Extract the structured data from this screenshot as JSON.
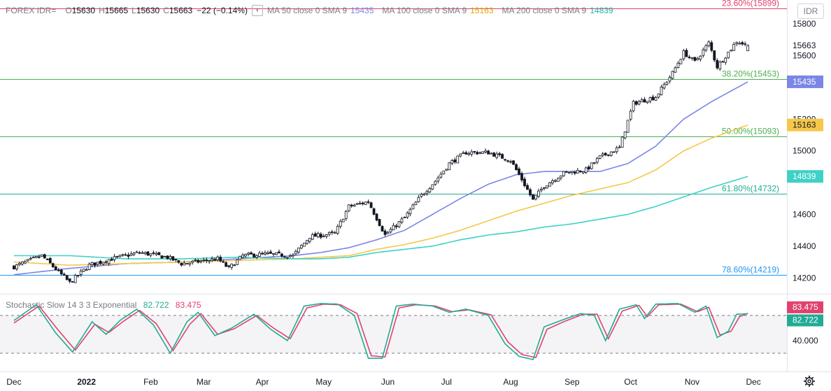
{
  "header": {
    "symbol": "FOREX IDR=",
    "o_label": "O",
    "o": "15630",
    "h_label": "H",
    "h": "15665",
    "l_label": "L",
    "l": "15630",
    "c_label": "C",
    "c": "15663",
    "change": "−22 (−0.14%)",
    "collapse_glyph": "‹",
    "ma50_label": "MA 50 close 0 SMA 9",
    "ma50_value": "15435",
    "ma100_label": "MA 100 close 0 SMA 9",
    "ma100_value": "15163",
    "ma200_label": "MA 200 close 0 SMA 9",
    "ma200_value": "14839"
  },
  "currency_button": "IDR",
  "stochastic": {
    "label": "Stochastic Slow 14 3 3 Exponential",
    "k": "82.722",
    "d": "83.475"
  },
  "colors": {
    "ma50": "#7b86e6",
    "ma100": "#f5c74a",
    "ma200": "#3fd1c6",
    "stoch_k": "#22ab94",
    "stoch_d": "#e0426e",
    "fib_23": "#e0426e",
    "fib_38": "#4caf50",
    "fib_50": "#4caf50",
    "fib_61": "#22ab94",
    "fib_78": "#2196f3"
  },
  "icons": {
    "settings": "gear-icon"
  },
  "chart_data": {
    "type": "candlestick",
    "ylim": [
      14100,
      15950
    ],
    "price_ticks": [
      "15800",
      "15600",
      "15200",
      "15000",
      "14600",
      "14400",
      "14200"
    ],
    "months": [
      "Dec",
      "2022",
      "Feb",
      "Mar",
      "Apr",
      "May",
      "Jun",
      "Jul",
      "Aug",
      "Sep",
      "Oct",
      "Nov",
      "Dec"
    ],
    "month_positions": [
      0,
      26,
      49,
      68,
      89,
      111,
      134,
      155,
      178,
      200,
      221,
      243,
      265
    ],
    "x_range": [
      -5,
      277
    ],
    "last_price": "15663",
    "fib_levels": [
      {
        "label": "23.60%(15899)",
        "value": 15899,
        "color": "#e0426e"
      },
      {
        "label": "38.20%(15453)",
        "value": 15453,
        "color": "#4caf50"
      },
      {
        "label": "50.00%(15093)",
        "value": 15093,
        "color": "#4caf50"
      },
      {
        "label": "61.80%(14732)",
        "value": 14732,
        "color": "#22ab94"
      },
      {
        "label": "78.60%(14219)",
        "value": 14219,
        "color": "#2196f3"
      }
    ],
    "close_anchors": [
      [
        0,
        14270
      ],
      [
        10,
        14340
      ],
      [
        20,
        14170
      ],
      [
        27,
        14280
      ],
      [
        35,
        14320
      ],
      [
        45,
        14360
      ],
      [
        55,
        14330
      ],
      [
        60,
        14290
      ],
      [
        65,
        14300
      ],
      [
        73,
        14320
      ],
      [
        77,
        14260
      ],
      [
        82,
        14340
      ],
      [
        90,
        14350
      ],
      [
        100,
        14340
      ],
      [
        106,
        14460
      ],
      [
        115,
        14480
      ],
      [
        120,
        14650
      ],
      [
        127,
        14680
      ],
      [
        133,
        14470
      ],
      [
        140,
        14580
      ],
      [
        146,
        14720
      ],
      [
        151,
        14810
      ],
      [
        156,
        14920
      ],
      [
        162,
        14990
      ],
      [
        170,
        14990
      ],
      [
        178,
        14940
      ],
      [
        182,
        14820
      ],
      [
        186,
        14690
      ],
      [
        190,
        14780
      ],
      [
        197,
        14860
      ],
      [
        205,
        14880
      ],
      [
        210,
        14960
      ],
      [
        217,
        15020
      ],
      [
        222,
        15300
      ],
      [
        230,
        15340
      ],
      [
        236,
        15490
      ],
      [
        240,
        15620
      ],
      [
        244,
        15560
      ],
      [
        249,
        15680
      ],
      [
        252,
        15530
      ],
      [
        256,
        15620
      ],
      [
        259,
        15690
      ],
      [
        263,
        15663
      ]
    ],
    "ma_series": [
      {
        "name": "MA 50 close 0 SMA 9",
        "value": 15435,
        "color": "#7b86e6",
        "anchors": [
          [
            0,
            14220
          ],
          [
            20,
            14260
          ],
          [
            40,
            14290
          ],
          [
            60,
            14300
          ],
          [
            80,
            14320
          ],
          [
            100,
            14340
          ],
          [
            110,
            14360
          ],
          [
            120,
            14390
          ],
          [
            130,
            14440
          ],
          [
            140,
            14500
          ],
          [
            150,
            14600
          ],
          [
            160,
            14700
          ],
          [
            170,
            14790
          ],
          [
            180,
            14850
          ],
          [
            190,
            14870
          ],
          [
            200,
            14870
          ],
          [
            210,
            14870
          ],
          [
            220,
            14920
          ],
          [
            230,
            15030
          ],
          [
            240,
            15200
          ],
          [
            250,
            15310
          ],
          [
            263,
            15435
          ]
        ]
      },
      {
        "name": "MA 100 close 0 SMA 9",
        "value": 15163,
        "color": "#f5c74a",
        "anchors": [
          [
            0,
            14300
          ],
          [
            20,
            14280
          ],
          [
            40,
            14290
          ],
          [
            60,
            14300
          ],
          [
            80,
            14310
          ],
          [
            100,
            14320
          ],
          [
            110,
            14330
          ],
          [
            120,
            14340
          ],
          [
            130,
            14380
          ],
          [
            140,
            14410
          ],
          [
            150,
            14450
          ],
          [
            160,
            14500
          ],
          [
            170,
            14560
          ],
          [
            180,
            14620
          ],
          [
            190,
            14670
          ],
          [
            200,
            14720
          ],
          [
            210,
            14760
          ],
          [
            220,
            14800
          ],
          [
            230,
            14880
          ],
          [
            240,
            15000
          ],
          [
            250,
            15080
          ],
          [
            263,
            15163
          ]
        ]
      },
      {
        "name": "MA 200 close 0 SMA 9",
        "value": 14839,
        "color": "#3fd1c6",
        "anchors": [
          [
            0,
            14340
          ],
          [
            20,
            14340
          ],
          [
            40,
            14320
          ],
          [
            60,
            14320
          ],
          [
            80,
            14330
          ],
          [
            100,
            14320
          ],
          [
            110,
            14320
          ],
          [
            120,
            14330
          ],
          [
            130,
            14360
          ],
          [
            140,
            14380
          ],
          [
            150,
            14400
          ],
          [
            160,
            14440
          ],
          [
            170,
            14470
          ],
          [
            180,
            14490
          ],
          [
            190,
            14520
          ],
          [
            200,
            14540
          ],
          [
            210,
            14570
          ],
          [
            220,
            14600
          ],
          [
            230,
            14650
          ],
          [
            240,
            14710
          ],
          [
            250,
            14770
          ],
          [
            263,
            14839
          ]
        ]
      }
    ],
    "stoch": {
      "ylim": [
        0,
        100
      ],
      "ticks": [
        "40.000"
      ],
      "bands": [
        80,
        20
      ],
      "k_last": 82.722,
      "d_last": 83.475,
      "k_anchors": [
        [
          0,
          72
        ],
        [
          8,
          97
        ],
        [
          15,
          52
        ],
        [
          21,
          22
        ],
        [
          28,
          70
        ],
        [
          33,
          50
        ],
        [
          38,
          72
        ],
        [
          44,
          90
        ],
        [
          50,
          65
        ],
        [
          56,
          20
        ],
        [
          62,
          70
        ],
        [
          66,
          85
        ],
        [
          72,
          48
        ],
        [
          78,
          60
        ],
        [
          86,
          82
        ],
        [
          92,
          58
        ],
        [
          98,
          40
        ],
        [
          104,
          95
        ],
        [
          110,
          99
        ],
        [
          116,
          98
        ],
        [
          122,
          80
        ],
        [
          127,
          12
        ],
        [
          132,
          12
        ],
        [
          137,
          95
        ],
        [
          143,
          98
        ],
        [
          150,
          95
        ],
        [
          156,
          85
        ],
        [
          162,
          90
        ],
        [
          170,
          80
        ],
        [
          176,
          35
        ],
        [
          181,
          15
        ],
        [
          186,
          10
        ],
        [
          190,
          62
        ],
        [
          196,
          72
        ],
        [
          203,
          83
        ],
        [
          208,
          80
        ],
        [
          212,
          40
        ],
        [
          217,
          90
        ],
        [
          223,
          97
        ],
        [
          226,
          75
        ],
        [
          230,
          98
        ],
        [
          238,
          99
        ],
        [
          244,
          85
        ],
        [
          248,
          95
        ],
        [
          252,
          45
        ],
        [
          256,
          55
        ],
        [
          259,
          82
        ],
        [
          263,
          82.722
        ]
      ],
      "d_anchors": [
        [
          0,
          68
        ],
        [
          9,
          95
        ],
        [
          16,
          56
        ],
        [
          22,
          25
        ],
        [
          29,
          66
        ],
        [
          34,
          53
        ],
        [
          39,
          70
        ],
        [
          45,
          88
        ],
        [
          51,
          67
        ],
        [
          57,
          24
        ],
        [
          63,
          66
        ],
        [
          67,
          83
        ],
        [
          73,
          50
        ],
        [
          79,
          59
        ],
        [
          87,
          80
        ],
        [
          93,
          60
        ],
        [
          99,
          43
        ],
        [
          105,
          92
        ],
        [
          111,
          98
        ],
        [
          117,
          97
        ],
        [
          123,
          83
        ],
        [
          128,
          16
        ],
        [
          133,
          14
        ],
        [
          138,
          92
        ],
        [
          144,
          97
        ],
        [
          151,
          95
        ],
        [
          157,
          86
        ],
        [
          163,
          89
        ],
        [
          171,
          81
        ],
        [
          177,
          38
        ],
        [
          182,
          18
        ],
        [
          187,
          13
        ],
        [
          191,
          58
        ],
        [
          197,
          70
        ],
        [
          204,
          82
        ],
        [
          209,
          82
        ],
        [
          213,
          43
        ],
        [
          218,
          87
        ],
        [
          224,
          96
        ],
        [
          227,
          78
        ],
        [
          231,
          97
        ],
        [
          239,
          98
        ],
        [
          245,
          86
        ],
        [
          249,
          93
        ],
        [
          253,
          49
        ],
        [
          257,
          55
        ],
        [
          260,
          78
        ],
        [
          263,
          83.475
        ]
      ]
    }
  }
}
